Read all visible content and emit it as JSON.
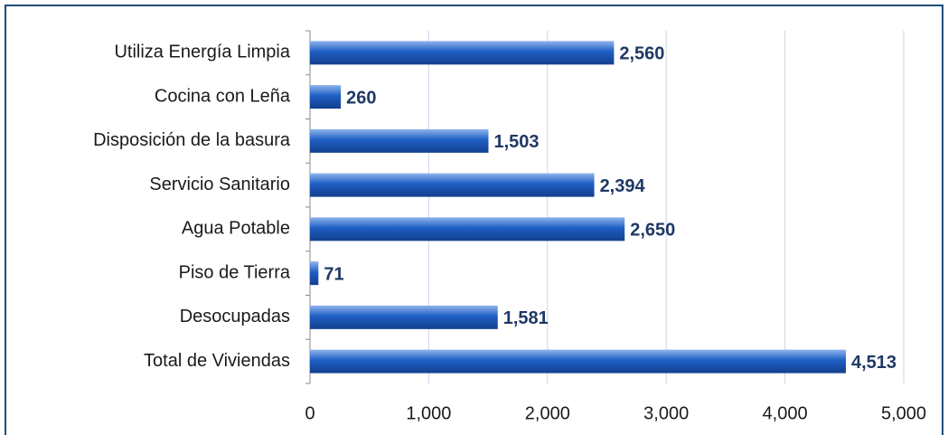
{
  "chart_data": {
    "type": "bar",
    "orientation": "horizontal",
    "categories": [
      "Utiliza Energía Limpia",
      "Cocina con Leña",
      "Disposición de la basura",
      "Servicio Sanitario",
      "Agua Potable",
      "Piso de Tierra",
      "Desocupadas",
      "Total de Viviendas"
    ],
    "values": [
      2560,
      260,
      1503,
      2394,
      2650,
      71,
      1581,
      4513
    ],
    "value_labels": [
      "2,560",
      "260",
      "1,503",
      "2,394",
      "2,650",
      "71",
      "1,581",
      "4,513"
    ],
    "color": "#1f5fc4",
    "xlim": [
      0,
      5000
    ],
    "xticks": [
      0,
      {
        "value": 1000,
        "label": "1,000"
      },
      {
        "value": 2000,
        "label": "2,000"
      },
      {
        "value": 3000,
        "label": "3,000"
      },
      {
        "value": 4000,
        "label": "4,000"
      },
      {
        "value": 5000,
        "label": "5,000"
      }
    ],
    "grid": true
  }
}
